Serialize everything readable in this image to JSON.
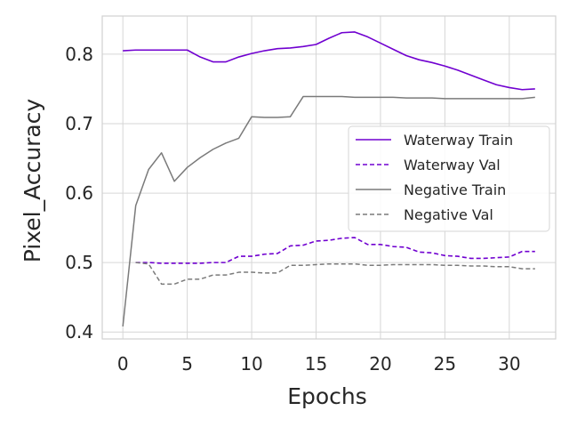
{
  "chart_data": {
    "type": "line",
    "title": "",
    "xlabel": "Epochs",
    "ylabel": "Pixel_Accuracy",
    "xlim": [
      -1.6,
      33.6
    ],
    "ylim": [
      0.39,
      0.855
    ],
    "xticks": [
      0,
      5,
      10,
      15,
      20,
      25,
      30
    ],
    "yticks": [
      0.4,
      0.5,
      0.6,
      0.7,
      0.8
    ],
    "xtick_labels": [
      "0",
      "5",
      "10",
      "15",
      "20",
      "25",
      "30"
    ],
    "ytick_labels": [
      "0.4",
      "0.5",
      "0.6",
      "0.7",
      "0.8"
    ],
    "grid": true,
    "legend_position": "center-right",
    "series": [
      {
        "name": "Waterway Train",
        "color": "#7000d0",
        "dashed": false,
        "x": [
          0,
          1,
          2,
          3,
          4,
          5,
          6,
          7,
          8,
          9,
          10,
          11,
          12,
          13,
          14,
          15,
          16,
          17,
          18,
          19,
          20,
          21,
          22,
          23,
          24,
          25,
          26,
          27,
          28,
          29,
          30,
          31,
          32
        ],
        "values": [
          0.805,
          0.806,
          0.806,
          0.806,
          0.806,
          0.806,
          0.796,
          0.789,
          0.789,
          0.796,
          0.801,
          0.805,
          0.808,
          0.809,
          0.811,
          0.814,
          0.823,
          0.831,
          0.832,
          0.825,
          0.816,
          0.807,
          0.798,
          0.792,
          0.788,
          0.783,
          0.777,
          0.77,
          0.763,
          0.756,
          0.752,
          0.749,
          0.75
        ]
      },
      {
        "name": "Waterway Val",
        "color": "#7000d0",
        "dashed": true,
        "x": [
          1,
          2,
          3,
          4,
          5,
          6,
          7,
          8,
          9,
          10,
          11,
          12,
          13,
          14,
          15,
          16,
          17,
          18,
          19,
          20,
          21,
          22,
          23,
          24,
          25,
          26,
          27,
          28,
          29,
          30,
          31,
          32
        ],
        "values": [
          0.5,
          0.5,
          0.499,
          0.499,
          0.499,
          0.499,
          0.5,
          0.5,
          0.509,
          0.509,
          0.512,
          0.513,
          0.524,
          0.525,
          0.531,
          0.532,
          0.535,
          0.536,
          0.526,
          0.526,
          0.523,
          0.522,
          0.515,
          0.514,
          0.51,
          0.509,
          0.506,
          0.506,
          0.507,
          0.508,
          0.516,
          0.516
        ]
      },
      {
        "name": "Negative Train",
        "color": "#7a7a7a",
        "dashed": false,
        "x": [
          0,
          1,
          2,
          3,
          4,
          5,
          6,
          7,
          8,
          9,
          10,
          11,
          12,
          13,
          14,
          15,
          16,
          17,
          18,
          19,
          20,
          21,
          22,
          23,
          24,
          25,
          26,
          27,
          28,
          29,
          30,
          31,
          32
        ],
        "values": [
          0.408,
          0.582,
          0.634,
          0.658,
          0.617,
          0.637,
          0.651,
          0.663,
          0.672,
          0.679,
          0.71,
          0.709,
          0.709,
          0.71,
          0.739,
          0.739,
          0.739,
          0.739,
          0.738,
          0.738,
          0.738,
          0.738,
          0.737,
          0.737,
          0.737,
          0.736,
          0.736,
          0.736,
          0.736,
          0.736,
          0.736,
          0.736,
          0.738
        ]
      },
      {
        "name": "Negative Val",
        "color": "#7a7a7a",
        "dashed": true,
        "x": [
          1,
          2,
          3,
          4,
          5,
          6,
          7,
          8,
          9,
          10,
          11,
          12,
          13,
          14,
          15,
          16,
          17,
          18,
          19,
          20,
          21,
          22,
          23,
          24,
          25,
          26,
          27,
          28,
          29,
          30,
          31,
          32
        ],
        "values": [
          0.5,
          0.498,
          0.469,
          0.469,
          0.476,
          0.476,
          0.482,
          0.482,
          0.486,
          0.486,
          0.485,
          0.485,
          0.496,
          0.496,
          0.497,
          0.498,
          0.498,
          0.498,
          0.496,
          0.496,
          0.497,
          0.497,
          0.497,
          0.497,
          0.496,
          0.496,
          0.495,
          0.495,
          0.494,
          0.494,
          0.491,
          0.491
        ]
      }
    ]
  }
}
